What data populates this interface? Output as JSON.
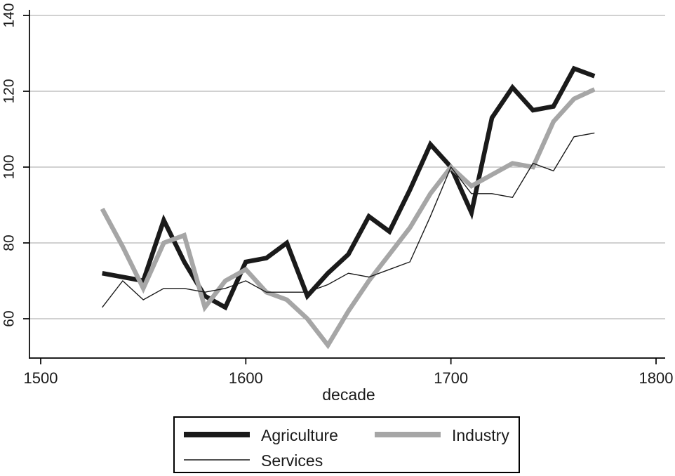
{
  "chart_data": {
    "type": "line",
    "title": "",
    "xlabel": "decade",
    "ylabel": "",
    "x": [
      1530,
      1540,
      1550,
      1560,
      1570,
      1580,
      1590,
      1600,
      1610,
      1620,
      1630,
      1640,
      1650,
      1660,
      1670,
      1680,
      1690,
      1700,
      1710,
      1720,
      1730,
      1740,
      1750,
      1760,
      1770
    ],
    "series": [
      {
        "name": "Agriculture",
        "color": "#1a1a1a",
        "stroke_width": 6.5,
        "values": [
          72,
          71,
          70,
          86,
          75,
          66,
          63,
          75,
          76,
          80,
          66,
          72,
          77,
          87,
          83,
          94,
          106,
          100,
          88,
          113,
          121,
          115,
          116,
          126,
          124
        ]
      },
      {
        "name": "Industry",
        "color": "#a6a6a6",
        "stroke_width": 6.5,
        "values": [
          89,
          79,
          68,
          80,
          82,
          63,
          70,
          73,
          67,
          65,
          60,
          53,
          62,
          70,
          77,
          84,
          93,
          100,
          95,
          98,
          101,
          100,
          112,
          118,
          120.5
        ]
      },
      {
        "name": "Services",
        "color": "#1a1a1a",
        "stroke_width": 1.4,
        "values": [
          63,
          70,
          65,
          68,
          68,
          67,
          68,
          70,
          67,
          67,
          67,
          69,
          72,
          71,
          73,
          75,
          87,
          100,
          93,
          93,
          92,
          101,
          99,
          108,
          109
        ]
      }
    ],
    "x_ticks": [
      1500,
      1600,
      1700,
      1800
    ],
    "y_ticks": [
      60,
      80,
      100,
      120,
      140
    ],
    "xlim": [
      1500,
      1800
    ],
    "ylim": [
      50,
      141
    ],
    "grid": "horizontal",
    "legend_position": "bottom-center",
    "colors": {
      "gridline": "#a3a3a3",
      "axis": "#000000",
      "text": "#1a1a1a",
      "background": "#ffffff"
    }
  }
}
